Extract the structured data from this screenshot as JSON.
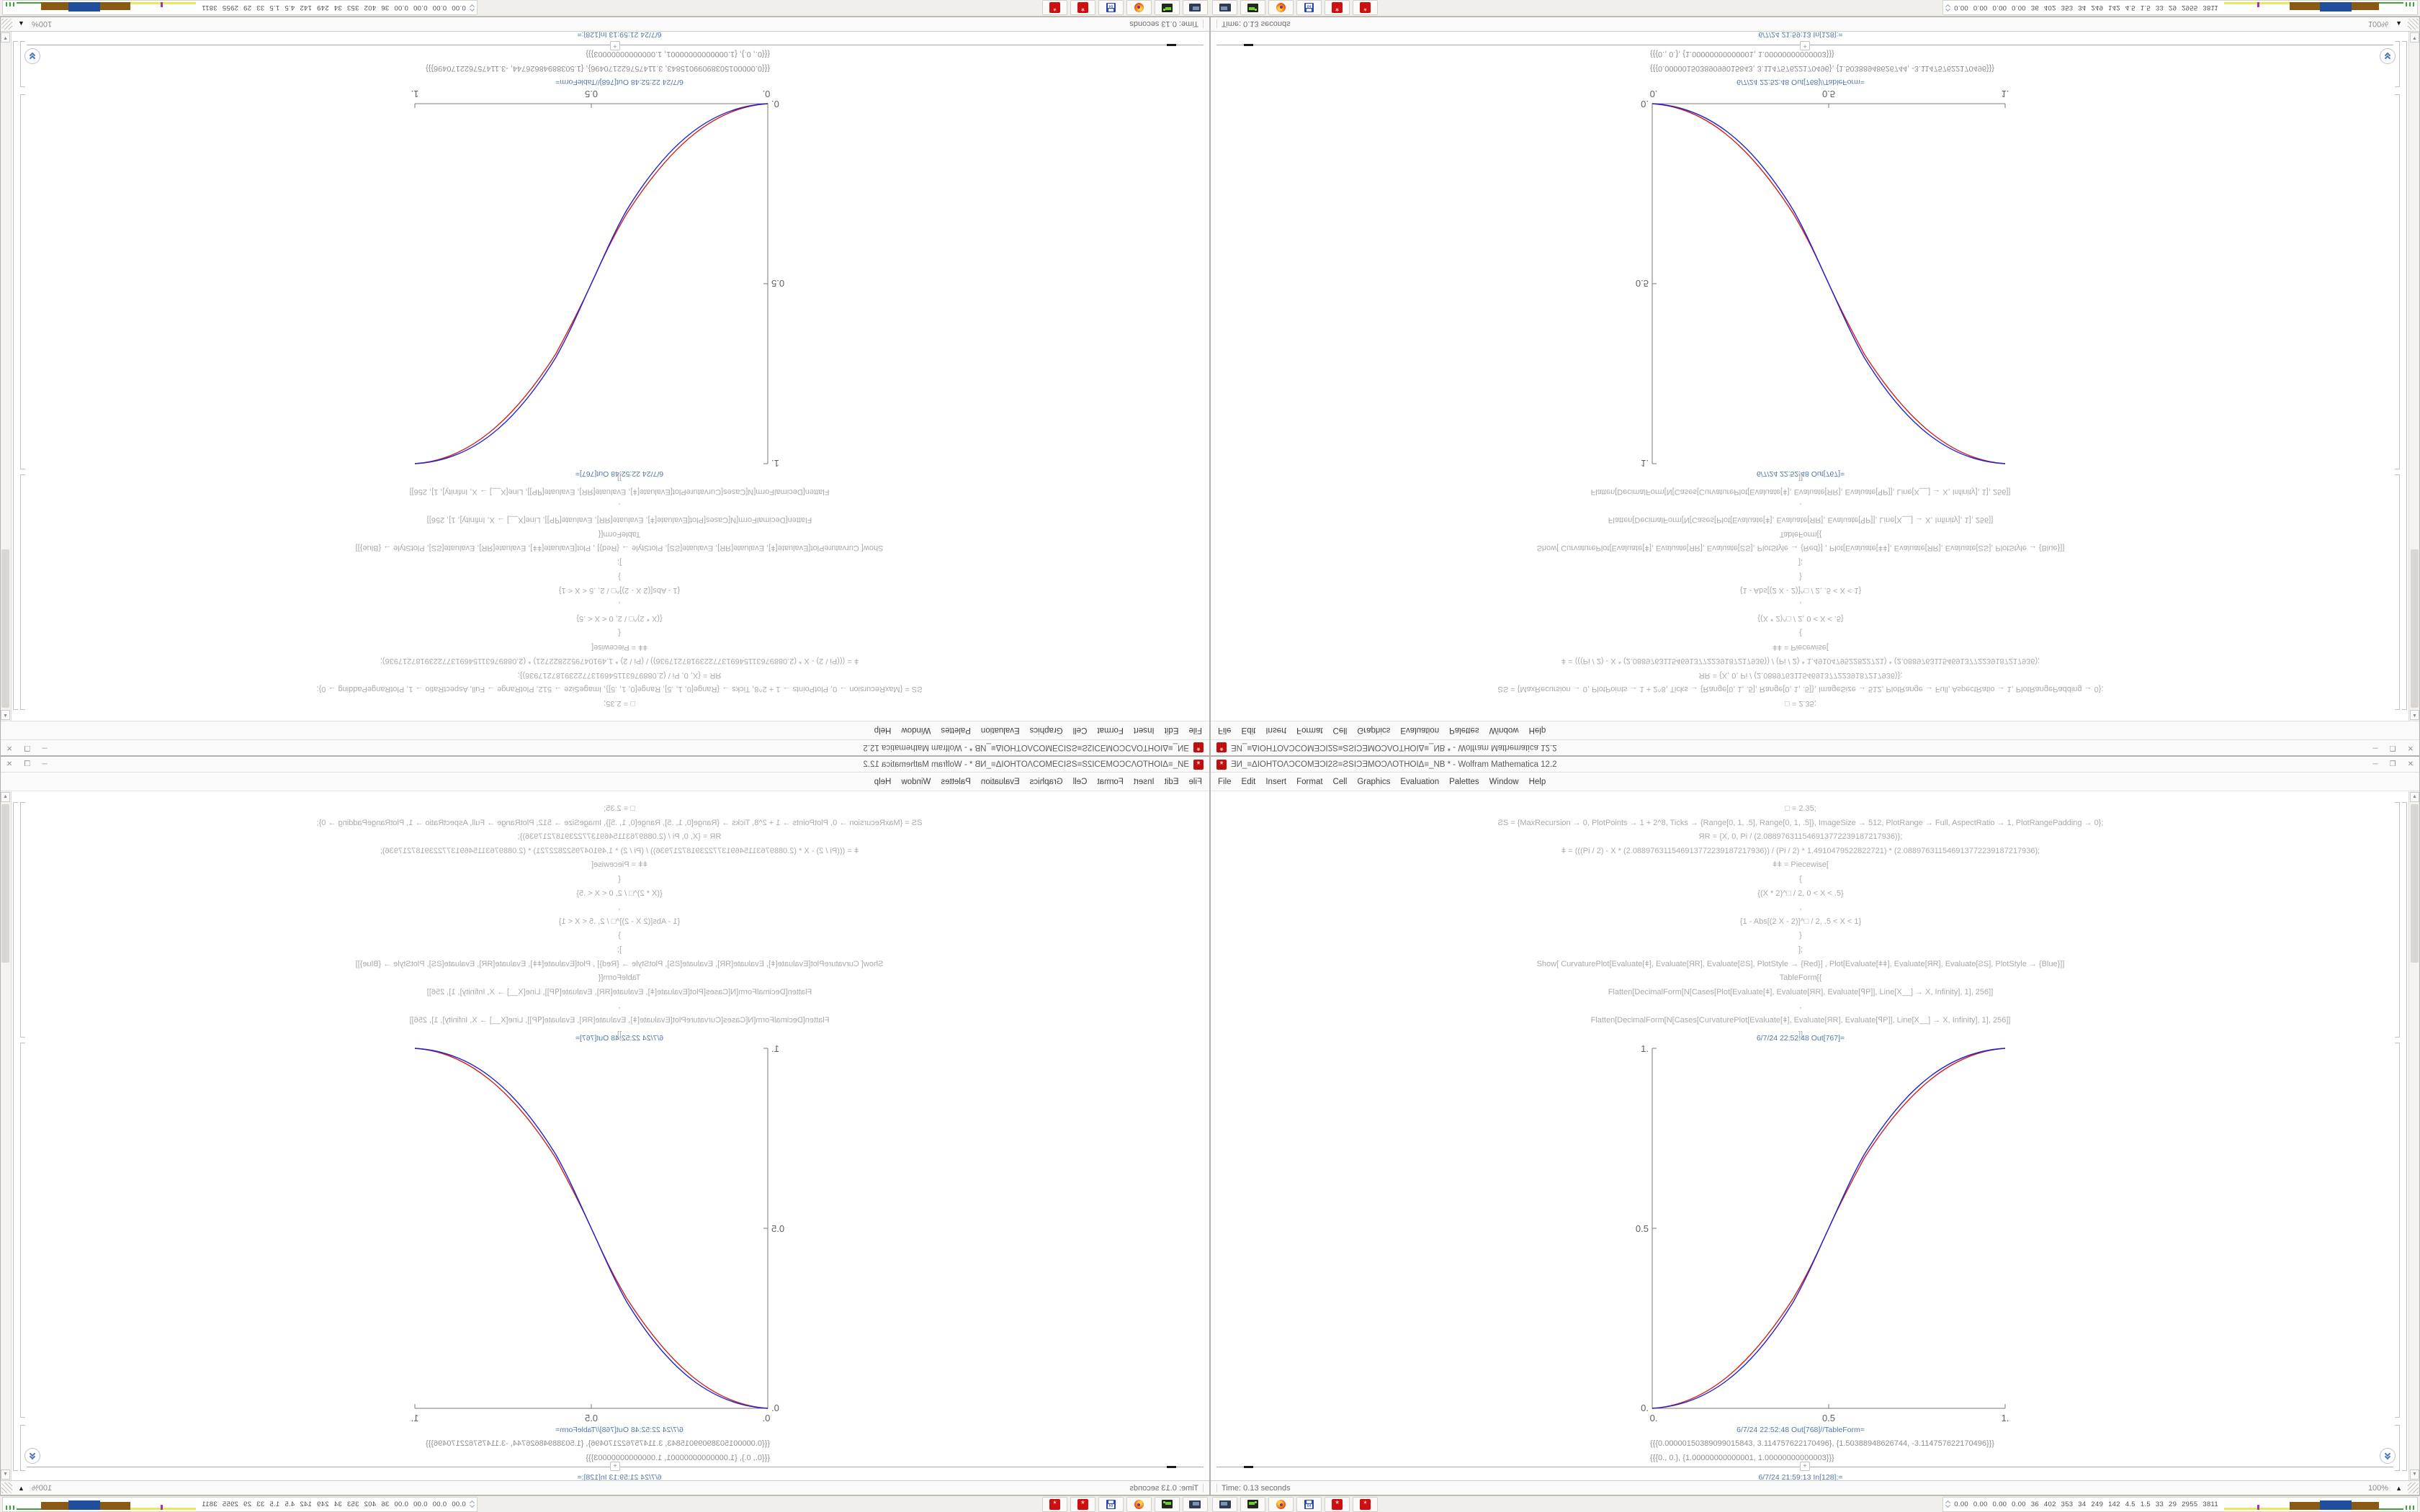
{
  "app": {
    "title": "ƎИ_≡ΔΙΟΗΤΟΛƆCOMƎƆΙ2Ƨ≡ƧSΙƆƎMOƆΛΟΤΗΟΙΔ≡_NB * - Wolfram Mathematica 12.2",
    "window_controls": {
      "minimize": "─",
      "maximize": "❐",
      "close": "✕"
    }
  },
  "menu": {
    "items": [
      "File",
      "Edit",
      "Insert",
      "Format",
      "Cell",
      "Graphics",
      "Evaluation",
      "Palettes",
      "Window",
      "Help"
    ]
  },
  "notebook": {
    "input_lines": [
      "□ = 2.35;",
      "ƧS = {MaxRecursion → 0, PlotPoints → 1 + 2^8, Ticks → {Range[0, 1, .5], Range[0, 1, .5]}, ImageSize → 512, PlotRange → Full, AspectRatio → 1, PlotRangePadding → 0};",
      "ЯR = {X, 0, Pi / (2.088976311546913772239187217936)};",
      "ǂ = (((Pi / 2) - X * (2.088976311546913772239187217936)) / (Pi / 2) * 1.4910479522822721) * (2.088976311546913772239187217936);",
      "ǂǂ = Piecewise[",
      "{",
      "{(X * 2)^□ / 2, 0 < X < .5}",
      ",",
      "{1 - Abs[(2 X - 2)]^□ / 2, .5 < X < 1}",
      "}",
      "];",
      "Show[  CurvaturePlot[Evaluate[ǂ], Evaluate[ЯR], Evaluate[ƧS], PlotStyle → {Red}]  ,  Plot[Evaluate[ǂǂ], Evaluate[ЯR], Evaluate[ƧS], PlotStyle → {Blue}]]",
      "TableForm[{",
      "Flatten[DecimalForm[N[Cases[Plot[Evaluate[ǂ], Evaluate[ЯR], Evaluate[ꟼP]], Line[X__] → X, Infinity], 1], 256]]",
      ",",
      "Flatten[DecimalForm[N[Cases[CurvaturePlot[Evaluate[ǂ], Evaluate[ЯR], Evaluate[ꟼP]], Line[X__] → X, Infinity], 1], 256]]",
      "]]"
    ],
    "out_plot_label": "6/7/24 22:52:48 Out[767]=",
    "out_table_label": "6/7/24 22:52:48 Out[768]//TableForm=",
    "in_label": "6/7/24 21:59:13 In[128]:=",
    "insert_plus": "+",
    "table_rows": [
      "{{{0.00000150389099015843, 3.114757622170496}, {1.50388948626744, -3.114757622170496}}}",
      "{{{0., 0.}, {1.00000000000001, 1.00000000000003}}}"
    ],
    "plot": {
      "type": "line",
      "x_ticks": [
        "0.",
        "0.5",
        "1."
      ],
      "y_ticks": [
        "0.",
        "0.5",
        "1."
      ],
      "xlim": [
        0,
        1
      ],
      "ylim": [
        0,
        1
      ],
      "grid": false,
      "series": [
        {
          "name": "CurvaturePlot (Red)",
          "color": "#cc2222",
          "x": [
            0,
            0.1,
            0.2,
            0.3,
            0.4,
            0.5,
            0.6,
            0.7,
            0.8,
            0.9,
            1
          ],
          "y": [
            0,
            0.015,
            0.067,
            0.163,
            0.306,
            0.5,
            0.694,
            0.837,
            0.933,
            0.985,
            1
          ]
        },
        {
          "name": "Plot (Blue)",
          "color": "#2222cc",
          "x": [
            0,
            0.1,
            0.2,
            0.3,
            0.4,
            0.5,
            0.6,
            0.7,
            0.8,
            0.9,
            1
          ],
          "y": [
            0,
            0.011,
            0.058,
            0.15,
            0.296,
            0.5,
            0.704,
            0.85,
            0.942,
            0.989,
            1
          ]
        }
      ]
    }
  },
  "statusbar": {
    "time": "Time: 0.13 seconds",
    "zoom": "100%"
  },
  "taskbar": {
    "launchers": [
      "display-settings",
      "disk-utility",
      "firefox",
      "floppy-64",
      "mathematica-kernel",
      "mathematica"
    ],
    "floppy_label": "64",
    "spikey_glyph": "*",
    "applet_numbers": "0.00 0.00 0.00 0.00  36  402  353  34  249  142  4.5  1.5  33  29  2955 3811",
    "applet_chart_colors": {
      "yellow": "#e9e95a",
      "purple": "#a832a8",
      "brown": "#8a5a14",
      "blue": "#1f4e9c",
      "green": "#3aa53a"
    }
  },
  "layout_note": {
    "quadrants": [
      "top-left: rotated 180°",
      "top-right: flipped vertically",
      "bottom-left: flipped horizontally",
      "bottom-right: original"
    ]
  }
}
